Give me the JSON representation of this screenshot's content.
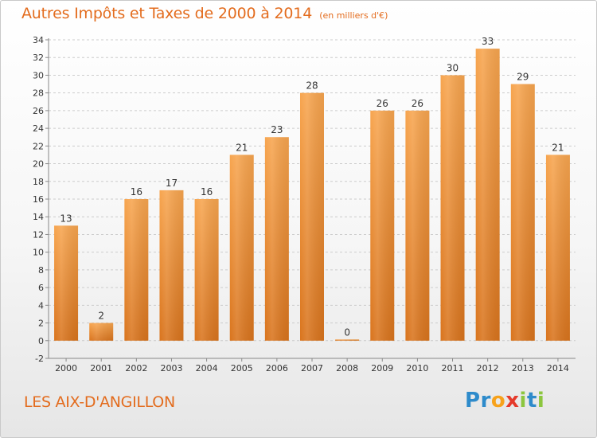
{
  "header": {
    "title": "Autres Impôts et Taxes de 2000 à 2014",
    "unit_note": "(en milliers d'€)"
  },
  "footer": {
    "place_name": "LES AIX-D'ANGILLON"
  },
  "logo": {
    "text": "Proxiti",
    "letters": [
      {
        "ch": "P",
        "color": "#2e8bcb"
      },
      {
        "ch": "r",
        "color": "#2e8bcb"
      },
      {
        "ch": "o",
        "color": "#f7a21b"
      },
      {
        "ch": "x",
        "color": "#e53a2b"
      },
      {
        "ch": "i",
        "color": "#8cc63f"
      },
      {
        "ch": "t",
        "color": "#2e8bcb"
      },
      {
        "ch": "i",
        "color": "#8cc63f"
      }
    ]
  },
  "colors": {
    "accent": "#e36c1e",
    "bar_top": "#f7a54f",
    "bar_bottom": "#d9741d",
    "axis_text": "#333333",
    "grid": "#cccccc"
  },
  "chart_data": {
    "type": "bar",
    "categories": [
      "2000",
      "2001",
      "2002",
      "2003",
      "2004",
      "2005",
      "2006",
      "2007",
      "2008",
      "2009",
      "2010",
      "2011",
      "2012",
      "2013",
      "2014"
    ],
    "values": [
      13,
      2,
      16,
      17,
      16,
      21,
      23,
      28,
      0,
      26,
      26,
      30,
      33,
      29,
      21
    ],
    "data_labels": [
      "13",
      "2",
      "16",
      "17",
      "16",
      "21",
      "23",
      "28",
      "0",
      "26",
      "26",
      "30",
      "33",
      "29",
      "21"
    ],
    "ylim": [
      -2,
      34
    ],
    "yticks": [
      -2,
      0,
      2,
      4,
      6,
      8,
      10,
      12,
      14,
      16,
      18,
      20,
      22,
      24,
      26,
      28,
      30,
      32,
      34
    ],
    "grid": true,
    "xlabel": "",
    "ylabel": ""
  }
}
